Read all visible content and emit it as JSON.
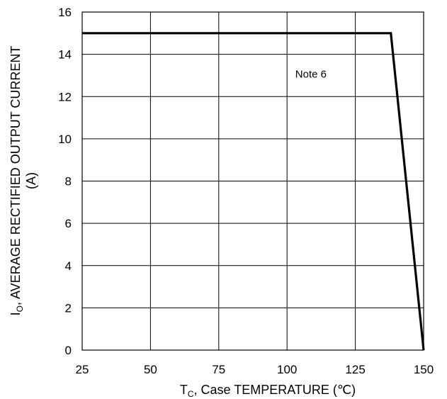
{
  "chart_data": {
    "type": "line",
    "x": [
      25,
      138,
      150
    ],
    "series": [
      {
        "values": [
          15,
          15,
          0
        ]
      }
    ],
    "xlim": [
      25,
      150
    ],
    "ylim": [
      0,
      16
    ],
    "x_ticks": [
      25,
      50,
      75,
      100,
      125,
      150
    ],
    "y_ticks": [
      0,
      2,
      4,
      6,
      8,
      10,
      12,
      14,
      16
    ],
    "xlabel": {
      "main": "T",
      "sub": "C",
      "rest": ", Case TEMPERATURE (℃)"
    },
    "ylabel": {
      "line1_main": "I",
      "line1_sub": "O",
      "line1_rest": ", AVERAGE RECTIFIED OUTPUT CURRENT",
      "line2": "(A)"
    },
    "annotations": [
      {
        "text": "Note 6",
        "x": 103,
        "y": 12.9
      }
    ],
    "grid": true,
    "line_color": "#000000"
  }
}
